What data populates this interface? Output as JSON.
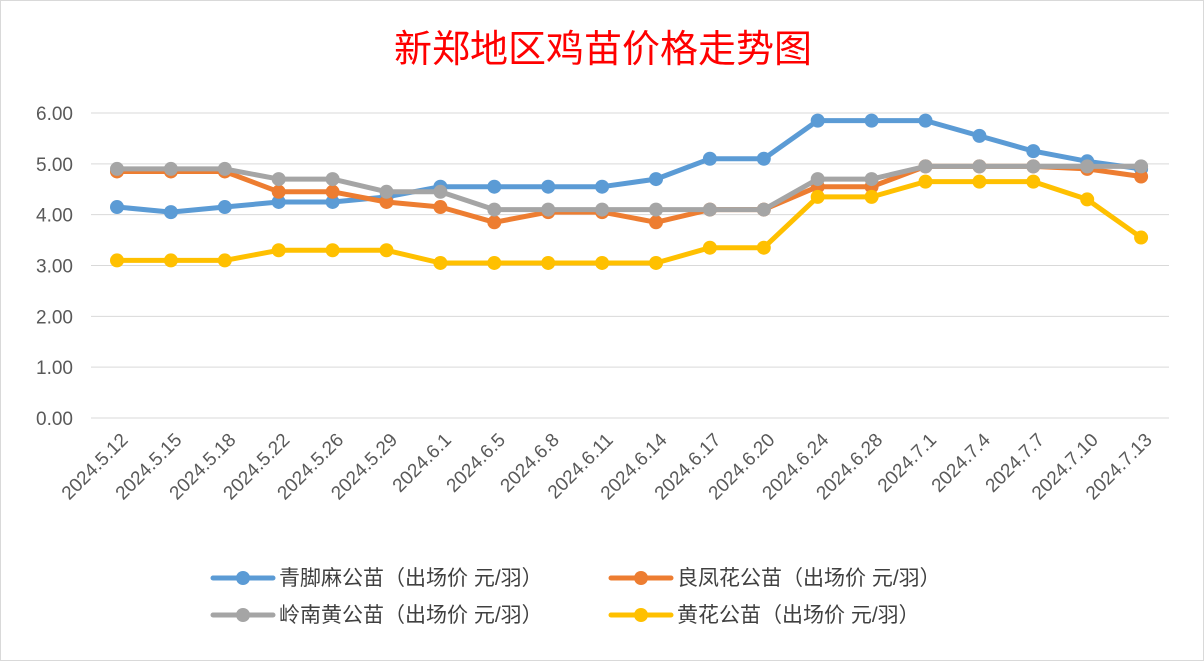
{
  "chart_data": {
    "type": "line",
    "title": "新郑地区鸡苗价格走势图",
    "xlabel": "",
    "ylabel": "",
    "categories": [
      "2024.5.12",
      "2024.5.15",
      "2024.5.18",
      "2024.5.22",
      "2024.5.26",
      "2024.5.29",
      "2024.6.1",
      "2024.6.5",
      "2024.6.8",
      "2024.6.11",
      "2024.6.14",
      "2024.6.17",
      "2024.6.20",
      "2024.6.24",
      "2024.6.28",
      "2024.7.1",
      "2024.7.4",
      "2024.7.7",
      "2024.7.10",
      "2024.7.13"
    ],
    "ylim": [
      0,
      6
    ],
    "yticks": [
      "0.00",
      "1.00",
      "2.00",
      "3.00",
      "4.00",
      "5.00",
      "6.00"
    ],
    "grid": true,
    "legend_position": "bottom",
    "series": [
      {
        "name": "青脚麻公苗（出场价 元/羽）",
        "color": "#5b9bd5",
        "values": [
          4.15,
          4.05,
          4.15,
          4.25,
          4.25,
          4.35,
          4.55,
          4.55,
          4.55,
          4.55,
          4.7,
          5.1,
          5.1,
          5.85,
          5.85,
          5.85,
          5.55,
          5.25,
          5.05,
          4.9
        ]
      },
      {
        "name": "良凤花公苗（出场价 元/羽）",
        "color": "#ed7d31",
        "values": [
          4.85,
          4.85,
          4.85,
          4.45,
          4.45,
          4.25,
          4.15,
          3.85,
          4.05,
          4.05,
          3.85,
          4.1,
          4.1,
          4.55,
          4.55,
          4.95,
          4.95,
          4.95,
          4.9,
          4.75
        ]
      },
      {
        "name": "岭南黄公苗（出场价 元/羽）",
        "color": "#a5a5a5",
        "values": [
          4.9,
          4.9,
          4.9,
          4.7,
          4.7,
          4.45,
          4.45,
          4.1,
          4.1,
          4.1,
          4.1,
          4.1,
          4.1,
          4.7,
          4.7,
          4.95,
          4.95,
          4.95,
          4.95,
          4.95
        ]
      },
      {
        "name": "黄花公苗（出场价 元/羽）",
        "color": "#ffc000",
        "values": [
          3.1,
          3.1,
          3.1,
          3.3,
          3.3,
          3.3,
          3.05,
          3.05,
          3.05,
          3.05,
          3.05,
          3.35,
          3.35,
          4.35,
          4.35,
          4.65,
          4.65,
          4.65,
          4.3,
          3.55
        ]
      }
    ]
  }
}
